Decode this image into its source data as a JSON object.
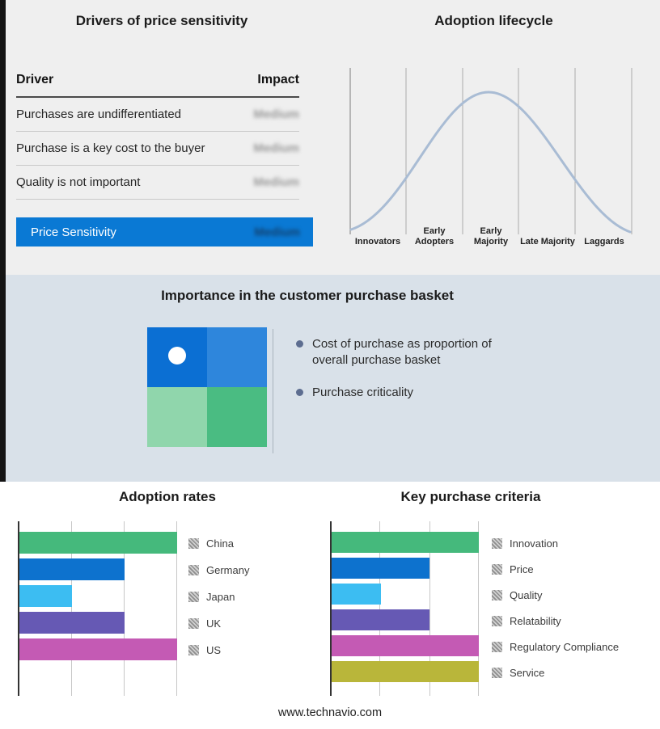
{
  "drivers_panel": {
    "title": "Drivers of price sensitivity",
    "columns": {
      "driver": "Driver",
      "impact": "Impact"
    },
    "rows": [
      {
        "driver": "Purchases are undifferentiated",
        "impact": "Medium"
      },
      {
        "driver": "Purchase is a key cost to the buyer",
        "impact": "Medium"
      },
      {
        "driver": "Quality is not important",
        "impact": "Medium"
      }
    ],
    "summary_row": {
      "label": "Price Sensitivity",
      "impact": "Medium",
      "background": "#0a79d4"
    },
    "impact_values_blurred": true
  },
  "basket_panel": {
    "title": "Importance in the customer purchase basket",
    "bullets": [
      "Cost of purchase as proportion of overall purchase basket",
      "Purchase criticality"
    ],
    "quadrant_colors": [
      "#0b6fd3",
      "#2e86dc",
      "#90d6ac",
      "#4abc82"
    ]
  },
  "footer": {
    "website": "www.technavio.com"
  },
  "chart_data": [
    {
      "type": "line",
      "title": "Adoption lifecycle",
      "description": "Bell-shaped adoption curve spanning five adopter stages; peak over Early Majority",
      "categories": [
        "Innovators",
        "Early Adopters",
        "Early Majority",
        "Late Majority",
        "Laggards"
      ],
      "curve_color": "#a9bcd4",
      "grid": true,
      "peak_stage": "Early Majority"
    },
    {
      "type": "bar",
      "title": "Adoption rates",
      "orientation": "horizontal",
      "categories": [
        "China",
        "Germany",
        "Japan",
        "UK",
        "US"
      ],
      "values": [
        3,
        2,
        1,
        2,
        3
      ],
      "max": 3,
      "colors": [
        "#45b97c",
        "#0d72ce",
        "#3cbdf2",
        "#6659b4",
        "#c45ab4"
      ],
      "note": "No numeric axis shown; values are relative bar lengths in thirds of the axis"
    },
    {
      "type": "bar",
      "title": "Key purchase criteria",
      "orientation": "horizontal",
      "categories": [
        "Innovation",
        "Price",
        "Quality",
        "Relatability",
        "Regulatory Compliance",
        "Service"
      ],
      "values": [
        3,
        2,
        1,
        2,
        3,
        3
      ],
      "max": 3,
      "colors": [
        "#45b97c",
        "#0d72ce",
        "#3cbdf2",
        "#6659b4",
        "#c45ab4",
        "#b9b63a"
      ],
      "note": "No numeric axis shown; values are relative bar lengths in thirds of the axis"
    }
  ]
}
